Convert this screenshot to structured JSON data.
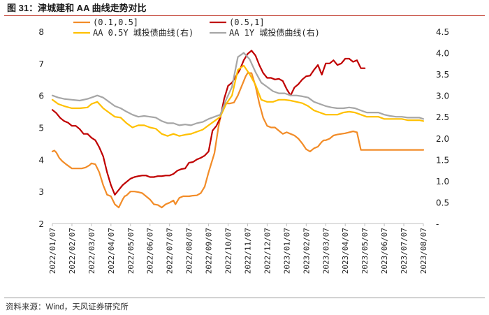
{
  "title": "图 31：津城建和 AA 曲线走势对比",
  "source": "资料来源：Wind，天风证券研究所",
  "colors": {
    "s1": "#F28C28",
    "s2": "#C00000",
    "s3": "#FFC000",
    "s4": "#A6A6A6"
  },
  "chart_data": {
    "type": "line",
    "title": "津城建和 AA 曲线走势对比",
    "x": [
      "2022/01/07",
      "2022/02/07",
      "2022/03/07",
      "2022/04/07",
      "2022/05/07",
      "2022/06/07",
      "2022/07/07",
      "2022/08/07",
      "2022/09/07",
      "2022/10/07",
      "2022/11/07",
      "2022/12/07",
      "2023/01/07",
      "2023/02/07",
      "2023/03/07",
      "2023/04/07",
      "2023/05/07",
      "2023/06/07",
      "2023/07/07",
      "2023/08/07"
    ],
    "y_left": {
      "min": 2,
      "max": 8,
      "ticks": [
        "2",
        "3",
        "4",
        "5",
        "6",
        "7",
        "8"
      ]
    },
    "y_right": {
      "min": 0,
      "max": 4.5,
      "ticks": [
        "-",
        "0.5",
        "1.0",
        "1.5",
        "2.0",
        "2.5",
        "3.0",
        "3.5",
        "4.0",
        "4.5"
      ]
    },
    "legend": "top",
    "series": [
      {
        "name": "(0.1,0.5]",
        "axis": "left",
        "color_key": "s1",
        "x": [
          0,
          0.1,
          0.2,
          0.35,
          0.5,
          0.7,
          1.0,
          1.3,
          1.5,
          1.7,
          1.9,
          2.0,
          2.2,
          2.4,
          2.6,
          2.8,
          3.0,
          3.2,
          3.4,
          3.6,
          3.7,
          3.8,
          4.0,
          4.2,
          4.4,
          4.6,
          4.8,
          5.0,
          5.2,
          5.4,
          5.6,
          5.8,
          6.0,
          6.2,
          6.3,
          6.5,
          6.7,
          6.9,
          7.0,
          7.2,
          7.4,
          7.6,
          7.8,
          8.0,
          8.1,
          8.3,
          8.5,
          8.7,
          8.9,
          9.1,
          9.3,
          9.5,
          9.7,
          9.9,
          10.0,
          10.2,
          10.4,
          10.6,
          10.8,
          11.0,
          11.2,
          11.4,
          11.6,
          11.8,
          12.0,
          12.2,
          12.4,
          12.6,
          12.8,
          13.0,
          13.2,
          13.4,
          13.6,
          13.8,
          13.9,
          14.0,
          14.2,
          14.4,
          14.6,
          14.8,
          15.0,
          15.2,
          15.4,
          15.6,
          15.8,
          16.0,
          16.2,
          16.4,
          16.6,
          16.8,
          17.0,
          17.2,
          17.4,
          17.6,
          17.8,
          18.0,
          18.2,
          18.4,
          18.6,
          18.8,
          19.0
        ],
        "values": [
          4.25,
          4.28,
          4.22,
          4.05,
          3.95,
          3.85,
          3.72,
          3.72,
          3.72,
          3.75,
          3.82,
          3.88,
          3.85,
          3.6,
          3.2,
          2.9,
          2.85,
          2.6,
          2.5,
          2.75,
          2.85,
          2.88,
          3.0,
          3.0,
          2.98,
          2.95,
          2.85,
          2.75,
          2.6,
          2.58,
          2.5,
          2.6,
          2.65,
          2.72,
          2.6,
          2.8,
          2.85,
          2.85,
          2.85,
          2.87,
          2.88,
          2.95,
          3.15,
          3.6,
          3.8,
          4.2,
          5.0,
          5.6,
          5.75,
          5.75,
          5.78,
          6.0,
          6.3,
          6.6,
          6.7,
          6.7,
          6.3,
          5.75,
          5.3,
          5.05,
          5.0,
          5.0,
          4.9,
          4.8,
          4.85,
          4.8,
          4.75,
          4.65,
          4.5,
          4.32,
          4.25,
          4.35,
          4.4,
          4.55,
          4.6,
          4.6,
          4.65,
          4.75,
          4.78,
          4.8,
          4.82,
          4.85,
          4.88,
          4.85,
          4.3,
          4.3,
          4.3,
          4.3,
          4.3,
          4.3,
          4.3,
          4.3,
          4.3,
          4.3,
          4.3,
          4.3,
          4.3,
          4.3,
          4.3,
          4.3,
          4.3
        ]
      },
      {
        "name": "(0.5,1]",
        "axis": "left",
        "color_key": "s2",
        "x": [
          0,
          0.2,
          0.4,
          0.6,
          0.8,
          1.0,
          1.2,
          1.4,
          1.6,
          1.8,
          2.0,
          2.2,
          2.4,
          2.6,
          2.8,
          3.0,
          3.2,
          3.4,
          3.6,
          3.8,
          4.0,
          4.2,
          4.4,
          4.6,
          4.8,
          5.0,
          5.2,
          5.4,
          5.6,
          5.8,
          6.0,
          6.2,
          6.4,
          6.6,
          6.8,
          7.0,
          7.2,
          7.4,
          7.6,
          7.8,
          8.0,
          8.2,
          8.4,
          8.6,
          8.8,
          9.0,
          9.2,
          9.4,
          9.6,
          9.8,
          10.0,
          10.2,
          10.4,
          10.6,
          10.8,
          11.0,
          11.2,
          11.4,
          11.6,
          11.8,
          12.0,
          12.2,
          12.4,
          12.6,
          12.8,
          13.0,
          13.2,
          13.4,
          13.6,
          13.8,
          14.0,
          14.2,
          14.4,
          14.6,
          14.8,
          15.0,
          15.2,
          15.4,
          15.6,
          15.8,
          16.0
        ],
        "values": [
          5.55,
          5.45,
          5.3,
          5.2,
          5.15,
          5.05,
          5.05,
          4.95,
          4.8,
          4.8,
          4.68,
          4.6,
          4.38,
          4.1,
          3.6,
          3.2,
          2.9,
          3.05,
          3.2,
          3.3,
          3.4,
          3.45,
          3.48,
          3.5,
          3.5,
          3.45,
          3.45,
          3.48,
          3.48,
          3.5,
          3.5,
          3.55,
          3.65,
          3.7,
          3.72,
          3.9,
          3.92,
          4.0,
          4.05,
          4.12,
          4.25,
          4.9,
          5.05,
          5.3,
          5.9,
          6.3,
          6.4,
          6.6,
          6.8,
          7.1,
          7.3,
          7.4,
          7.25,
          6.95,
          6.7,
          6.55,
          6.55,
          6.5,
          6.52,
          6.45,
          6.2,
          6.0,
          6.25,
          6.35,
          6.5,
          6.6,
          6.62,
          6.8,
          6.95,
          6.65,
          7.0,
          7.0,
          7.1,
          6.95,
          7.0,
          7.15,
          7.15,
          7.05,
          7.1,
          6.85,
          6.85
        ]
      },
      {
        "name": "AA 0.5Y 城投债曲线(右)",
        "axis": "right",
        "color_key": "s3",
        "x": [
          0,
          0.3,
          0.6,
          1.0,
          1.4,
          1.8,
          2.0,
          2.3,
          2.6,
          2.9,
          3.2,
          3.5,
          3.8,
          4.1,
          4.4,
          4.7,
          5.0,
          5.3,
          5.6,
          5.9,
          6.2,
          6.5,
          6.8,
          7.1,
          7.4,
          7.7,
          8.0,
          8.3,
          8.6,
          8.9,
          9.2,
          9.5,
          9.8,
          10.1,
          10.4,
          10.7,
          11.0,
          11.3,
          11.6,
          11.9,
          12.2,
          12.5,
          12.8,
          13.1,
          13.4,
          13.7,
          14.0,
          14.3,
          14.6,
          14.9,
          15.2,
          15.5,
          15.8,
          16.1,
          16.4,
          16.7,
          17.0,
          17.3,
          17.6,
          17.9,
          18.2,
          18.5,
          18.8,
          19.0
        ],
        "values": [
          2.9,
          2.8,
          2.75,
          2.7,
          2.7,
          2.72,
          2.8,
          2.85,
          2.7,
          2.6,
          2.5,
          2.48,
          2.35,
          2.25,
          2.3,
          2.3,
          2.25,
          2.22,
          2.1,
          2.05,
          2.1,
          2.05,
          2.08,
          2.1,
          2.15,
          2.2,
          2.3,
          2.4,
          2.5,
          2.8,
          3.0,
          3.6,
          3.7,
          3.5,
          3.25,
          2.9,
          2.85,
          2.85,
          2.9,
          2.9,
          2.88,
          2.85,
          2.82,
          2.75,
          2.65,
          2.6,
          2.55,
          2.55,
          2.55,
          2.6,
          2.62,
          2.6,
          2.55,
          2.5,
          2.5,
          2.5,
          2.45,
          2.45,
          2.45,
          2.45,
          2.42,
          2.42,
          2.42,
          2.4
        ]
      },
      {
        "name": "AA 1Y 城投债曲线(右)",
        "axis": "right",
        "color_key": "s4",
        "x": [
          0,
          0.3,
          0.6,
          1.0,
          1.4,
          1.8,
          2.0,
          2.3,
          2.6,
          2.9,
          3.2,
          3.5,
          3.8,
          4.1,
          4.4,
          4.7,
          5.0,
          5.3,
          5.6,
          5.9,
          6.2,
          6.5,
          6.8,
          7.1,
          7.4,
          7.7,
          8.0,
          8.3,
          8.6,
          8.9,
          9.2,
          9.5,
          9.8,
          10.1,
          10.4,
          10.7,
          11.0,
          11.3,
          11.6,
          11.9,
          12.2,
          12.5,
          12.8,
          13.1,
          13.4,
          13.7,
          14.0,
          14.3,
          14.6,
          14.9,
          15.2,
          15.5,
          15.8,
          16.1,
          16.4,
          16.7,
          17.0,
          17.3,
          17.6,
          17.9,
          18.2,
          18.5,
          18.8,
          19.0
        ],
        "values": [
          3.0,
          2.95,
          2.92,
          2.9,
          2.88,
          2.92,
          2.95,
          3.0,
          2.95,
          2.85,
          2.75,
          2.7,
          2.62,
          2.55,
          2.5,
          2.52,
          2.5,
          2.48,
          2.4,
          2.35,
          2.35,
          2.3,
          2.32,
          2.3,
          2.35,
          2.38,
          2.45,
          2.5,
          2.55,
          2.9,
          3.2,
          3.9,
          4.0,
          3.85,
          3.55,
          3.3,
          3.2,
          3.1,
          3.05,
          3.05,
          3.0,
          3.0,
          2.98,
          2.95,
          2.85,
          2.8,
          2.75,
          2.72,
          2.7,
          2.7,
          2.72,
          2.7,
          2.65,
          2.6,
          2.6,
          2.6,
          2.55,
          2.52,
          2.5,
          2.5,
          2.48,
          2.48,
          2.48,
          2.45
        ]
      }
    ]
  }
}
